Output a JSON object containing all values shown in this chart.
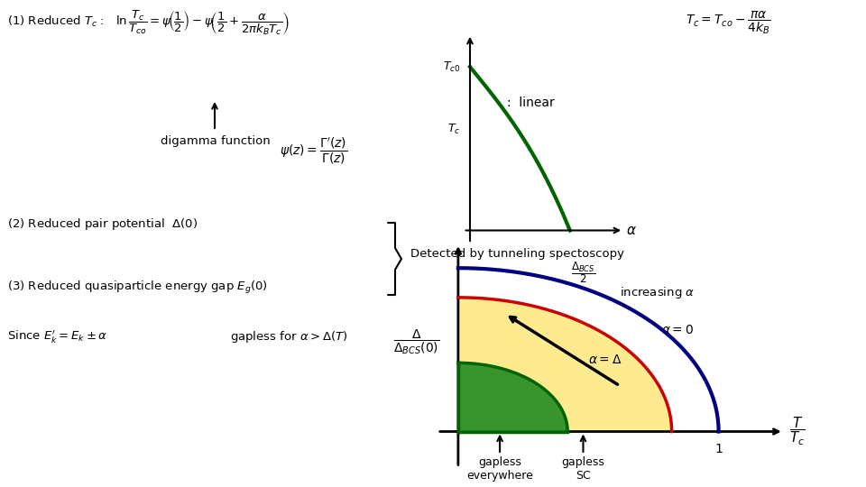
{
  "bg_color": "#ffffff",
  "eq1_text": "(1) Reduced $T_c$ :   $\\ln\\dfrac{T_c}{T_{co}} = \\psi\\!\\left(\\dfrac{1}{2}\\right) - \\psi\\!\\left(\\dfrac{1}{2} + \\dfrac{\\alpha}{2\\pi k_B T_c}\\right)$",
  "digamma_label": "digamma function",
  "digamma_formula": "$\\psi(z) = \\dfrac{\\Gamma'(z)}{\\Gamma(z)}$",
  "top_right_formula": "$T_c = T_{co} - \\dfrac{\\pi\\alpha}{4k_B}$",
  "top_right_xlabel": "$\\alpha$",
  "top_right_ylabel_t0": "$T_{c0}$",
  "top_right_ylabel_tc": "$T_c$",
  "top_right_xmark": "$\\dfrac{\\Delta_{BCS}}{2}$",
  "item2_text": "(2) Reduced pair potential  $\\Delta(0)$",
  "item3_text": "(3) Reduced quasiparticle energy gap $E_g(0)$",
  "detected_text": "Detected by tunneling spectoscopy",
  "bottom_left_text1": "Since $E_k' = E_k \\pm \\alpha$",
  "bottom_left_text2": "gapless for $\\alpha > \\Delta(T)$",
  "bottom_xlabel": "$\\dfrac{T}{T_c}$",
  "bottom_ylabel": "$\\dfrac{\\Delta}{\\Delta_{BCS}(0)}$",
  "increasing_alpha_label": "increasing $\\alpha$",
  "alpha0_label": "$\\alpha = 0$",
  "alpha_delta_label": "$\\alpha = \\Delta$",
  "xmark1_label": "1",
  "gapless_everywhere_label": "gapless\neverywhere",
  "gapless_sc_label": "gapless\nSC",
  "curve_color_top": "#006400",
  "curve_color_blue": "#000080",
  "curve_color_red": "#CC0000",
  "curve_color_green": "#006400",
  "fill_yellow": "#FFE87C",
  "fill_green": "#228B22",
  "arrow_color": "#000000"
}
